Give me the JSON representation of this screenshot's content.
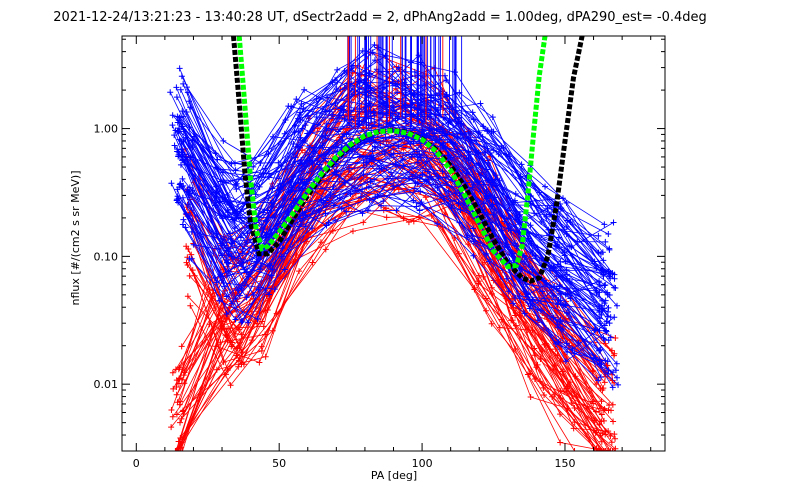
{
  "chart_data": {
    "type": "line",
    "title": "2021-12-24/13:21:23 - 13:40:28 UT, dSectr2add = 2, dPhAng2add = 1.00deg, dPA290_est=  -0.4deg",
    "xlabel": "PA [deg]",
    "ylabel": "nflux [#/(cm2 s sr MeV)]",
    "xlim": [
      -5,
      185
    ],
    "ylim": [
      0.003,
      5.3
    ],
    "y_scale": "log",
    "grid": false,
    "x_ticks": [
      0,
      50,
      100,
      150
    ],
    "x_tick_labels": [
      "0",
      "50",
      "100",
      "150"
    ],
    "y_ticks": [
      0.01,
      0.1,
      1.0
    ],
    "y_tick_labels": [
      "0.01",
      "0.10",
      "1.00"
    ],
    "series": [
      {
        "color": "#0000ff",
        "style": "thin lines with plus markers (many sweeps)",
        "points_example": [
          [
            16,
            0.65
          ],
          [
            25,
            0.22
          ],
          [
            40,
            0.11
          ],
          [
            55,
            0.45
          ],
          [
            70,
            0.75
          ],
          [
            83,
            0.95
          ],
          [
            90,
            0.92
          ],
          [
            100,
            0.85
          ],
          [
            112,
            0.6
          ],
          [
            122,
            0.35
          ],
          [
            135,
            0.12
          ],
          [
            148,
            0.08
          ],
          [
            162,
            0.04
          ]
        ]
      },
      {
        "color": "#ff0000",
        "style": "thin lines with plus markers (many sweeps)",
        "points_example": [
          [
            17,
            0.2
          ],
          [
            25,
            0.05
          ],
          [
            40,
            0.03
          ],
          [
            55,
            0.2
          ],
          [
            70,
            0.6
          ],
          [
            82,
            0.85
          ],
          [
            90,
            0.88
          ],
          [
            100,
            0.8
          ],
          [
            112,
            0.45
          ],
          [
            125,
            0.12
          ],
          [
            140,
            0.03
          ],
          [
            152,
            0.012
          ],
          [
            160,
            0.006
          ]
        ]
      },
      {
        "color": "#000000",
        "style": "thick dashed fit curve",
        "x": [
          34,
          36,
          38,
          40,
          43,
          46,
          50,
          55,
          60,
          65,
          70,
          75,
          80,
          85,
          90,
          95,
          100,
          105,
          110,
          115,
          120,
          125,
          130,
          135,
          138,
          141,
          144,
          147,
          150,
          153,
          156
        ],
        "y": [
          5.3,
          1.6,
          0.45,
          0.18,
          0.105,
          0.105,
          0.13,
          0.2,
          0.3,
          0.43,
          0.58,
          0.74,
          0.87,
          0.95,
          0.97,
          0.93,
          0.83,
          0.68,
          0.51,
          0.35,
          0.22,
          0.135,
          0.088,
          0.068,
          0.064,
          0.068,
          0.1,
          0.25,
          0.8,
          2.5,
          5.3
        ]
      },
      {
        "color": "#00ff00",
        "style": "thick dashed fit curve",
        "x": [
          36,
          38,
          40,
          42,
          44,
          46,
          50,
          55,
          60,
          65,
          70,
          75,
          80,
          85,
          90,
          95,
          100,
          105,
          110,
          115,
          120,
          125,
          130,
          133,
          135,
          137,
          139,
          141,
          143
        ],
        "y": [
          5.3,
          1.5,
          0.4,
          0.16,
          0.115,
          0.12,
          0.155,
          0.22,
          0.32,
          0.45,
          0.6,
          0.75,
          0.88,
          0.95,
          0.96,
          0.92,
          0.82,
          0.66,
          0.47,
          0.3,
          0.18,
          0.11,
          0.083,
          0.085,
          0.12,
          0.3,
          0.9,
          2.6,
          5.3
        ]
      }
    ]
  }
}
